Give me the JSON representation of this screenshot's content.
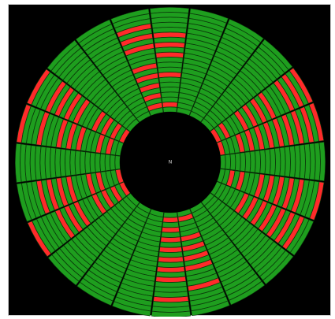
{
  "window": {
    "background": "#000000",
    "center_label": "N"
  },
  "disk_map": {
    "colors": {
      "healthy": "#1e9e1e",
      "bad": "#ff2a2a",
      "line": "#0b3b0b",
      "hub": "#000000"
    },
    "rings": 21,
    "sectors_per_ring": 24,
    "bad_sector_fraction_range": [
      0.08,
      0.2
    ]
  }
}
